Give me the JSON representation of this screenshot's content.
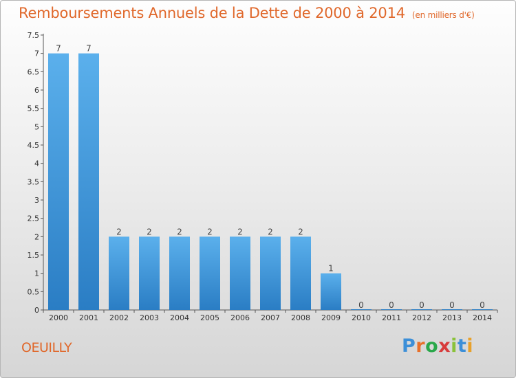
{
  "title": "Remboursements Annuels de la Dette de 2000 à 2014",
  "unit": "(en milliers d'€)",
  "town": "OEUILLY",
  "logo": {
    "text": "Proxiti",
    "colors": [
      "#3c8fd8",
      "#e8702a",
      "#2aa84a",
      "#d83c3c",
      "#8ac23a",
      "#3c8fd8",
      "#e8a12a"
    ]
  },
  "colors": {
    "bar": "#3a93db",
    "accent": "#e0682b"
  },
  "chart_data": {
    "type": "bar",
    "title": "Remboursements Annuels de la Dette de 2000 à 2014",
    "categories": [
      "2000",
      "2001",
      "2002",
      "2003",
      "2004",
      "2005",
      "2006",
      "2007",
      "2008",
      "2009",
      "2010",
      "2011",
      "2012",
      "2013",
      "2014"
    ],
    "values": [
      7,
      7,
      2,
      2,
      2,
      2,
      2,
      2,
      2,
      1,
      0,
      0,
      0,
      0,
      0
    ],
    "data_labels": [
      "7",
      "7",
      "2",
      "2",
      "2",
      "2",
      "2",
      "2",
      "2",
      "1",
      "0",
      "0",
      "0",
      "0",
      "0"
    ],
    "yticks": [
      "0",
      "0.5",
      "1",
      "1.5",
      "2",
      "2.5",
      "3",
      "3.5",
      "4",
      "4.5",
      "5",
      "5.5",
      "6",
      "6.5",
      "7",
      "7.5"
    ],
    "ylim": [
      0,
      7.5
    ],
    "grid": false
  }
}
